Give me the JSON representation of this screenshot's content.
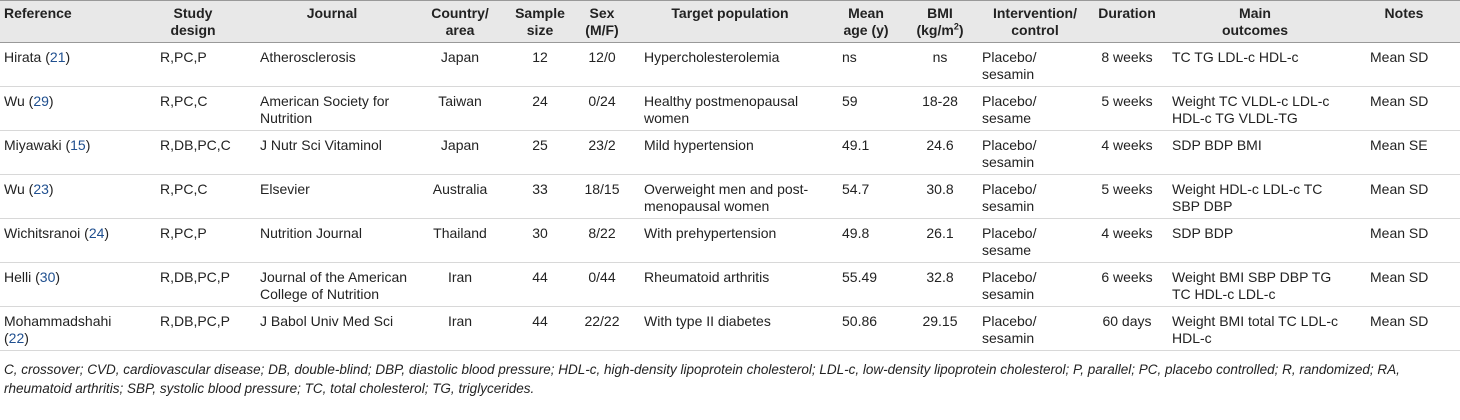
{
  "headers": [
    {
      "text": "Reference",
      "lines": [
        "Reference"
      ]
    },
    {
      "text": "Study design",
      "lines": [
        "Study",
        "design"
      ]
    },
    {
      "text": "Journal",
      "lines": [
        "Journal"
      ]
    },
    {
      "text": "Country/area",
      "lines": [
        "Country/",
        "area"
      ]
    },
    {
      "text": "Sample size",
      "lines": [
        "Sample",
        "size"
      ]
    },
    {
      "text": "Sex (M/F)",
      "lines": [
        "Sex",
        "(M/F)"
      ]
    },
    {
      "text": "Target population",
      "lines": [
        "Target population"
      ]
    },
    {
      "text": "Mean age (y)",
      "lines": [
        "Mean",
        "age (y)"
      ]
    },
    {
      "text": "BMI (kg/m2)",
      "lines": [
        "BMI",
        "(kg/m"
      ],
      "sup": "2",
      "after_sup": ")"
    },
    {
      "text": "Intervention/control",
      "lines": [
        "Intervention/",
        "control"
      ]
    },
    {
      "text": "Duration",
      "lines": [
        "Duration"
      ]
    },
    {
      "text": "Main outcomes",
      "lines": [
        "Main",
        "outcomes"
      ]
    },
    {
      "text": "Notes",
      "lines": [
        "Notes"
      ]
    }
  ],
  "rows": [
    {
      "author": "Hirata",
      "ref": "21",
      "design": "R,PC,P",
      "journal": "Atherosclerosis",
      "country": "Japan",
      "sample": "12",
      "sex": "12/0",
      "population": "Hypercholesterolemia",
      "age": "ns",
      "bmi": "ns",
      "intervention": "Placebo/ sesamin",
      "duration": "8 weeks",
      "outcomes": "TC TG LDL-c HDL-c",
      "notes": "Mean SD"
    },
    {
      "author": "Wu",
      "ref": "29",
      "design": "R,PC,C",
      "journal": "American Society for Nutrition",
      "country": "Taiwan",
      "sample": "24",
      "sex": "0/24",
      "population": "Healthy postmenopausal women",
      "age": "59",
      "bmi": "18-28",
      "intervention": "Placebo/ sesame",
      "duration": "5 weeks",
      "outcomes": "Weight TC VLDL-c LDL-c HDL-c TG VLDL-TG",
      "notes": "Mean SD"
    },
    {
      "author": "Miyawaki",
      "ref": "15",
      "design": "R,DB,PC,C",
      "journal": "J Nutr Sci Vitaminol",
      "country": "Japan",
      "sample": "25",
      "sex": "23/2",
      "population": "Mild hypertension",
      "age": "49.1",
      "bmi": "24.6",
      "intervention": "Placebo/ sesamin",
      "duration": "4 weeks",
      "outcomes": "SDP BDP BMI",
      "notes": "Mean SE"
    },
    {
      "author": "Wu",
      "ref": "23",
      "design": "R,PC,C",
      "journal": "Elsevier",
      "country": "Australia",
      "sample": "33",
      "sex": "18/15",
      "population": "Overweight men and post-menopausal women",
      "age": "54.7",
      "bmi": "30.8",
      "intervention": "Placebo/ sesamin",
      "duration": "5 weeks",
      "outcomes": "Weight HDL-c LDL-c TC SBP DBP",
      "notes": "Mean SD"
    },
    {
      "author": "Wichitsranoi",
      "ref": "24",
      "design": "R,PC,P",
      "journal": "Nutrition Journal",
      "country": "Thailand",
      "sample": "30",
      "sex": "8/22",
      "population": "With prehypertension",
      "age": "49.8",
      "bmi": "26.1",
      "intervention": "Placebo/ sesame",
      "duration": "4 weeks",
      "outcomes": "SDP BDP",
      "notes": "Mean SD"
    },
    {
      "author": "Helli",
      "ref": "30",
      "design": "R,DB,PC,P",
      "journal": "Journal of the American College of Nutrition",
      "country": "Iran",
      "sample": "44",
      "sex": "0/44",
      "population": "Rheumatoid arthritis",
      "age": "55.49",
      "bmi": "32.8",
      "intervention": "Placebo/ sesamin",
      "duration": "6 weeks",
      "outcomes": "Weight BMI SBP DBP TG TC HDL-c LDL-c",
      "notes": "Mean SD"
    },
    {
      "author": "Mohammadshahi",
      "ref": "22",
      "design": "R,DB,PC,P",
      "journal": "J Babol Univ Med Sci",
      "country": "Iran",
      "sample": "44",
      "sex": "22/22",
      "population": "With type II diabetes",
      "age": "50.86",
      "bmi": "29.15",
      "intervention": "Placebo/ sesamin",
      "duration": "60 days",
      "outcomes": "Weight BMI total TC LDL-c HDL-c",
      "notes": "Mean SD"
    }
  ],
  "footnote": "C, crossover; CVD, cardiovascular disease; DB, double-blind; DBP, diastolic blood pressure; HDL-c, high-density lipoprotein cholesterol; LDL-c, low-density lipoprotein cholesterol; P, parallel; PC, placebo controlled; R, randomized; RA, rheumatoid arthritis; SBP, systolic blood pressure; TC, total cholesterol; TG, triglycerides.",
  "colors": {
    "header_bg": "#e8e8e8",
    "ref_link": "#1f4f8f"
  }
}
